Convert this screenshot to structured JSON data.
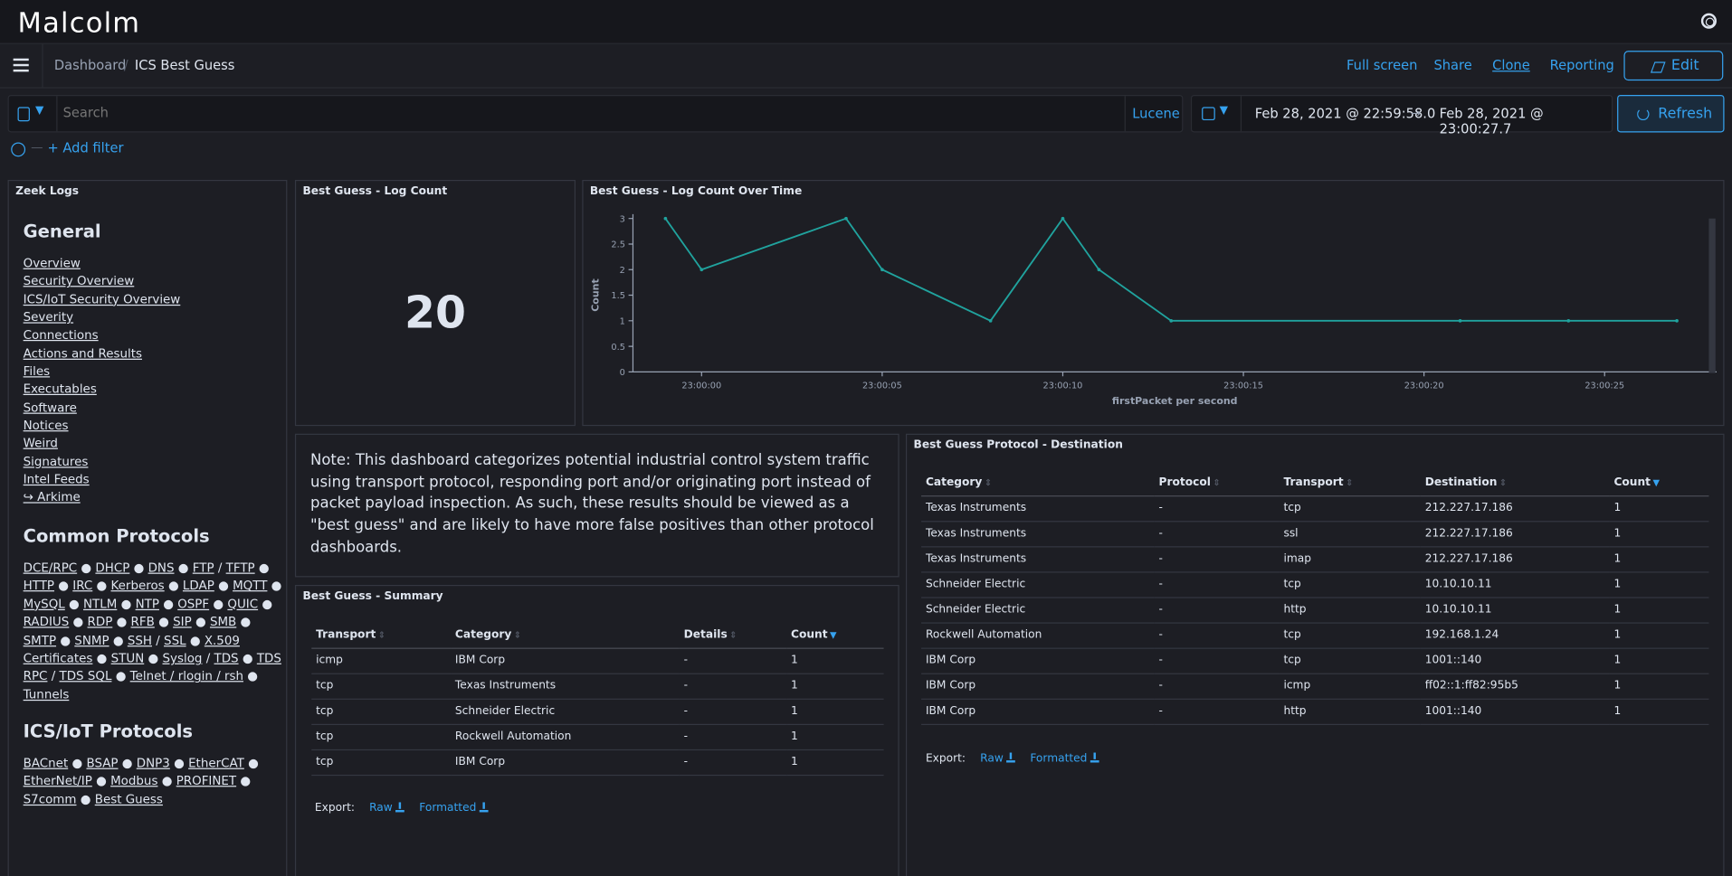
{
  "app": {
    "logo": "Malcolm"
  },
  "breadcrumb": {
    "parent": "Dashboard",
    "current": "ICS Best Guess"
  },
  "nav": {
    "full_screen": "Full screen",
    "share": "Share",
    "clone": "Clone",
    "reporting": "Reporting",
    "edit": "Edit"
  },
  "query": {
    "placeholder": "Search",
    "language": "Lucene"
  },
  "time": {
    "start": "Feb 28, 2021 @ 22:59:58.0",
    "arrow": "→",
    "end": "Feb 28, 2021 @ 23:00:27.7",
    "refresh": "Refresh"
  },
  "filters": {
    "add": "+ Add filter"
  },
  "zeek_logs": {
    "title": "Zeek Logs",
    "general_heading": "General",
    "general_links": [
      "Overview",
      "Security Overview",
      "ICS/IoT Security Overview",
      "Severity",
      "Connections",
      "Actions and Results",
      "Files",
      "Executables",
      "Software",
      "Notices",
      "Weird",
      "Signatures",
      "Intel Feeds",
      "↪ Arkime"
    ],
    "common_heading": "Common Protocols",
    "common_links": [
      "DCE/RPC",
      "DHCP",
      "DNS",
      "FTP",
      "TFTP",
      "HTTP",
      "IRC",
      "Kerberos",
      "LDAP",
      "MQTT",
      "MySQL",
      "NTLM",
      "NTP",
      "OSPF",
      "QUIC",
      "RADIUS",
      "RDP",
      "RFB",
      "SIP",
      "SMB",
      "SMTP",
      "SNMP",
      "SSH",
      "SSL",
      "X.509 Certificates",
      "STUN",
      "Syslog",
      "TDS",
      "TDS RPC",
      "TDS SQL",
      "Telnet / rlogin / rsh",
      "Tunnels"
    ],
    "ics_heading": "ICS/IoT Protocols",
    "ics_links": [
      "BACnet",
      "BSAP",
      "DNP3",
      "EtherCAT",
      "EtherNet/IP",
      "Modbus",
      "PROFINET",
      "S7comm",
      "Best Guess"
    ]
  },
  "log_count": {
    "title": "Best Guess - Log Count",
    "value": "20"
  },
  "over_time": {
    "title": "Best Guess - Log Count Over Time"
  },
  "chart_data": {
    "type": "line",
    "title": "Best Guess - Log Count Over Time",
    "xlabel": "firstPacket per second",
    "ylabel": "Count",
    "ylim": [
      0,
      3
    ],
    "yticks": [
      "0",
      "0.5",
      "1",
      "1.5",
      "2",
      "2.5",
      "3"
    ],
    "xticks": [
      "23:00:00",
      "23:00:05",
      "23:00:10",
      "23:00:15",
      "23:00:20",
      "23:00:25"
    ],
    "x_seconds": [
      -1,
      0,
      4,
      5,
      8,
      10,
      11,
      13,
      21,
      24,
      27
    ],
    "values": [
      3,
      2,
      3,
      2,
      1,
      3,
      2,
      1,
      1,
      1,
      1
    ],
    "color": "#20a39e"
  },
  "note": {
    "text": "Note: This dashboard categorizes potential industrial control system traffic using transport protocol, responding port and/or originating port instead of packet payload inspection. As such, these results should be viewed as a \"best guess\" and are likely to have more false positives than other protocol dashboards."
  },
  "summary": {
    "title": "Best Guess - Summary",
    "columns": [
      "Transport",
      "Category",
      "Details",
      "Count"
    ],
    "rows": [
      [
        "icmp",
        "IBM Corp",
        "-",
        "1"
      ],
      [
        "tcp",
        "Texas Instruments",
        "-",
        "1"
      ],
      [
        "tcp",
        "Schneider Electric",
        "-",
        "1"
      ],
      [
        "tcp",
        "Rockwell Automation",
        "-",
        "1"
      ],
      [
        "tcp",
        "IBM Corp",
        "-",
        "1"
      ]
    ],
    "export_label": "Export:",
    "raw": "Raw",
    "formatted": "Formatted"
  },
  "destination": {
    "title": "Best Guess Protocol - Destination",
    "columns": [
      "Category",
      "Protocol",
      "Transport",
      "Destination",
      "Count"
    ],
    "rows": [
      [
        "Texas Instruments",
        "-",
        "tcp",
        "212.227.17.186",
        "1"
      ],
      [
        "Texas Instruments",
        "-",
        "ssl",
        "212.227.17.186",
        "1"
      ],
      [
        "Texas Instruments",
        "-",
        "imap",
        "212.227.17.186",
        "1"
      ],
      [
        "Schneider Electric",
        "-",
        "tcp",
        "10.10.10.11",
        "1"
      ],
      [
        "Schneider Electric",
        "-",
        "http",
        "10.10.10.11",
        "1"
      ],
      [
        "Rockwell Automation",
        "-",
        "tcp",
        "192.168.1.24",
        "1"
      ],
      [
        "IBM Corp",
        "-",
        "tcp",
        "1001::140",
        "1"
      ],
      [
        "IBM Corp",
        "-",
        "icmp",
        "ff02::1:ff82:95b5",
        "1"
      ],
      [
        "IBM Corp",
        "-",
        "http",
        "1001::140",
        "1"
      ]
    ],
    "export_label": "Export:",
    "raw": "Raw",
    "formatted": "Formatted"
  },
  "colors": {
    "accent": "#36a2ef",
    "background": "#1d1e24",
    "line": "#20a39e"
  }
}
